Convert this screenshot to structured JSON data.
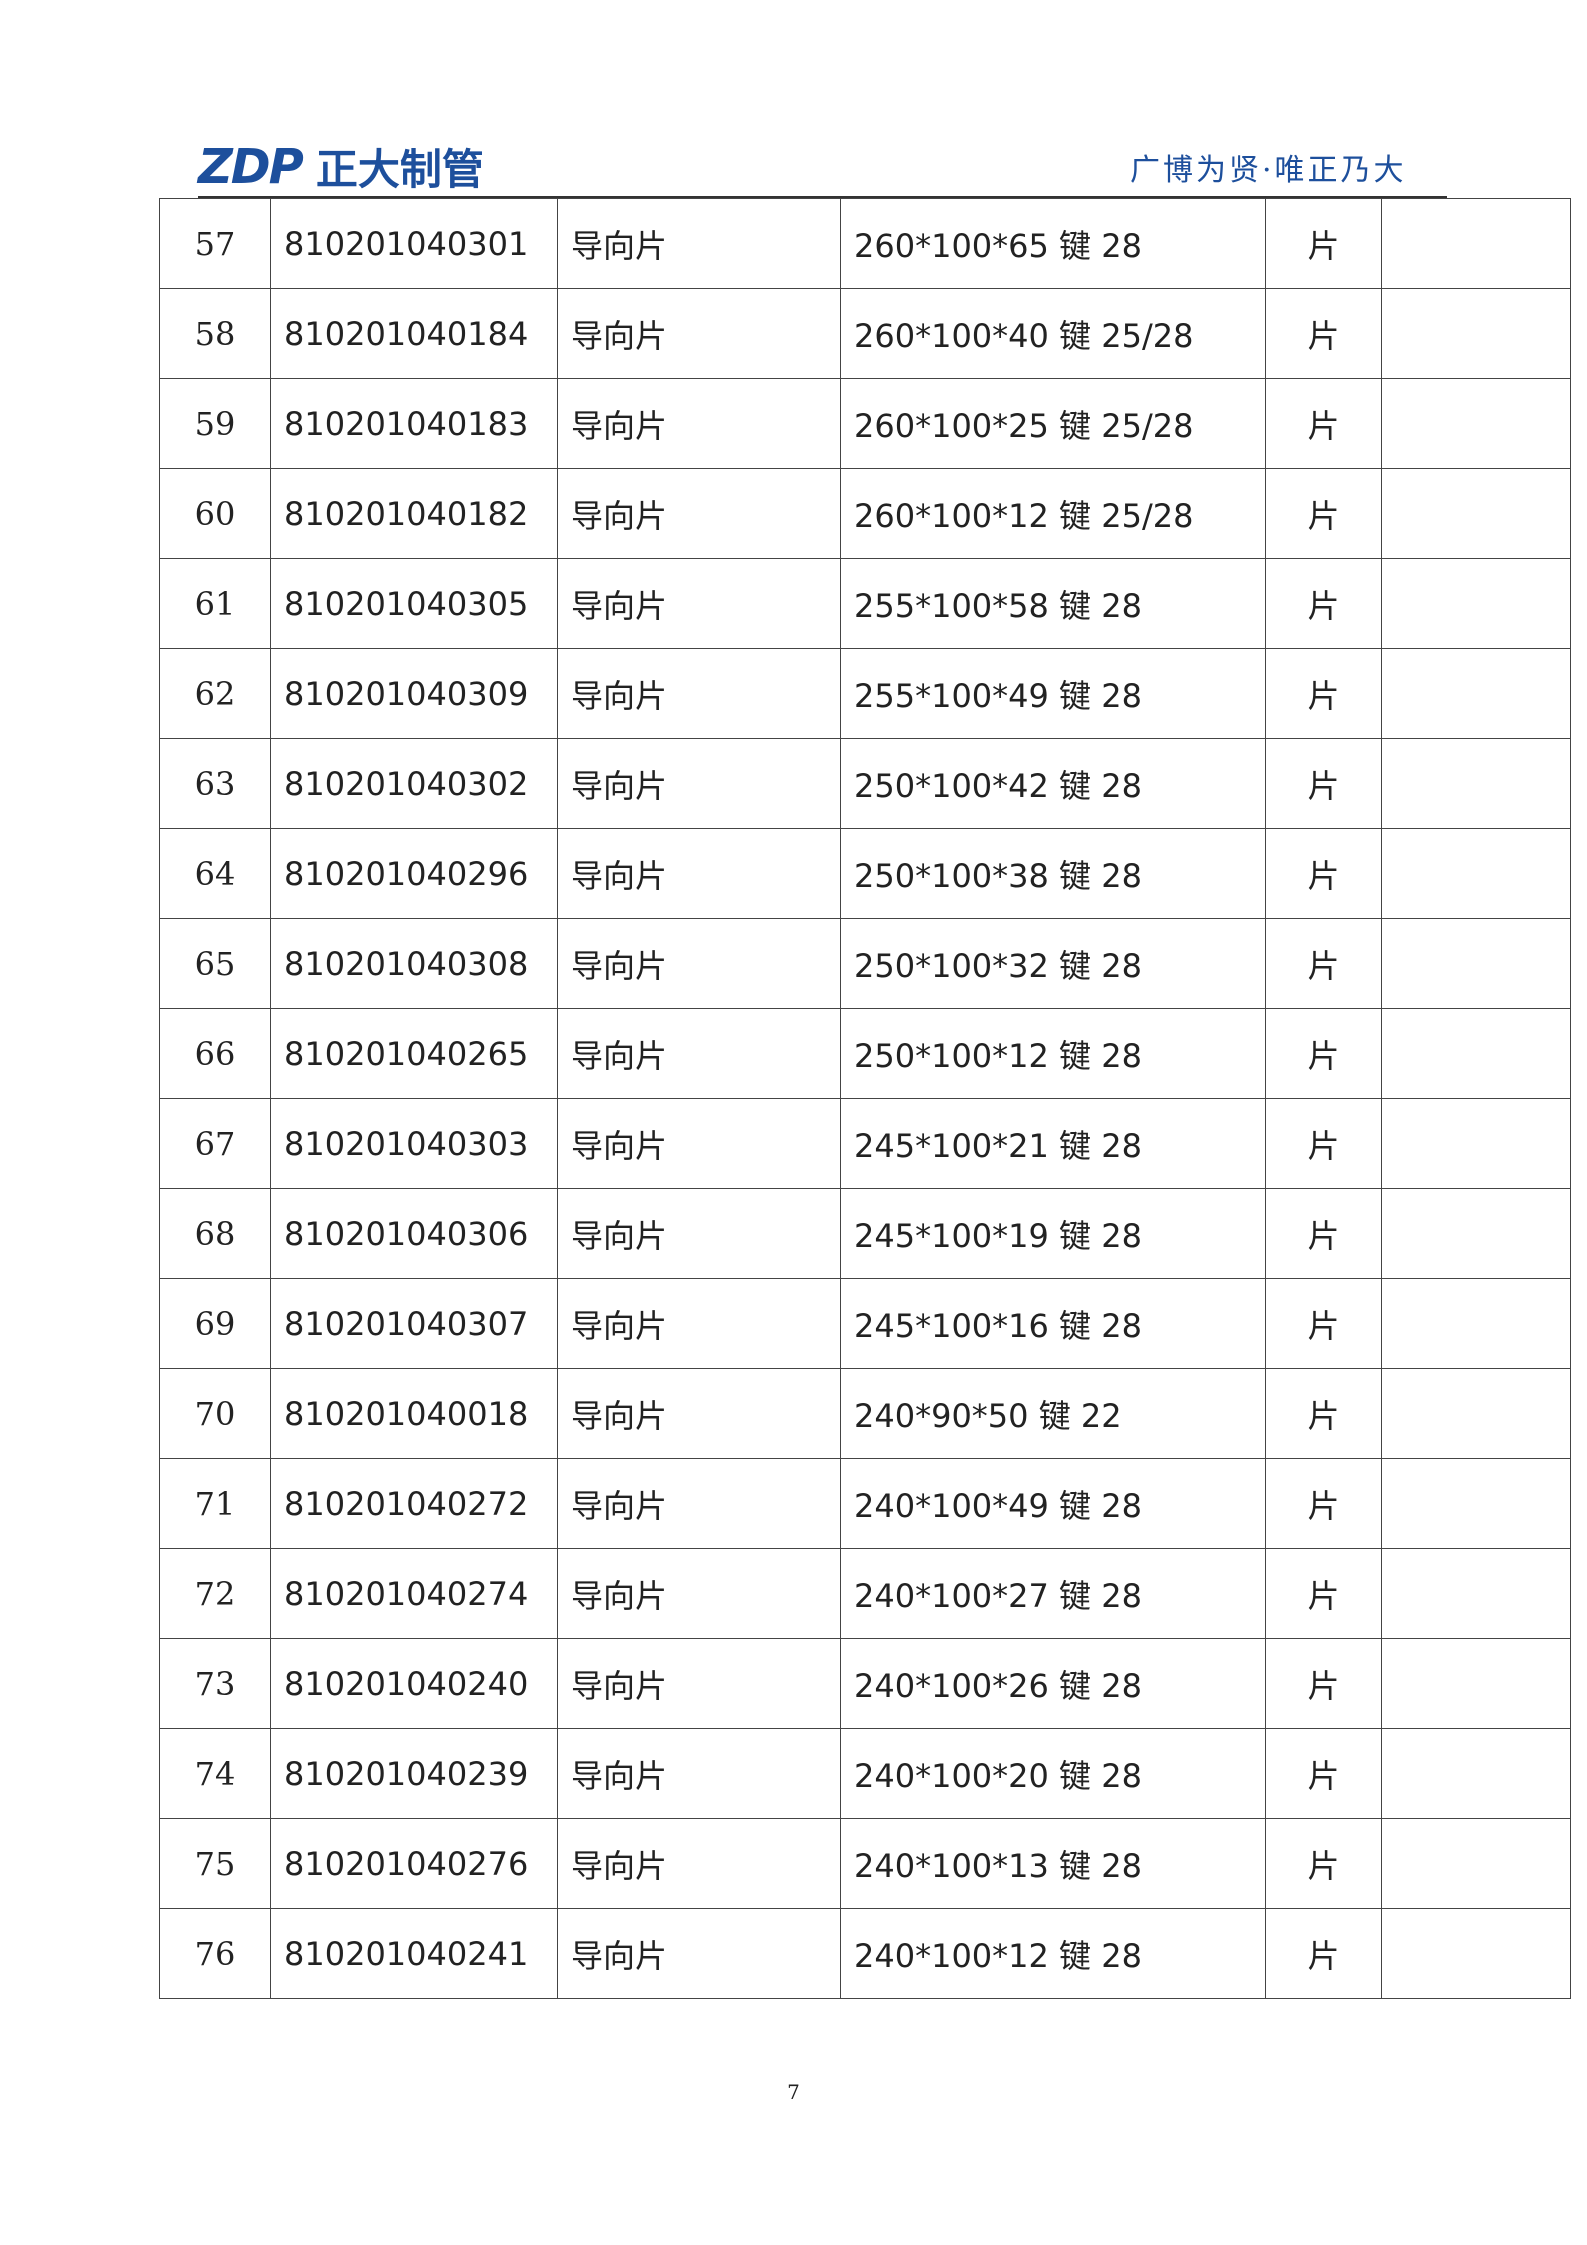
{
  "header": {
    "logo_mark": "ZDP",
    "logo_text": "正大制管",
    "slogan": "广博为贤·唯正乃大"
  },
  "table": {
    "rows": [
      [
        "57",
        "810201040301",
        "导向片",
        "260*100*65 键 28",
        "片"
      ],
      [
        "58",
        "810201040184",
        "导向片",
        "260*100*40 键 25/28",
        "片"
      ],
      [
        "59",
        "810201040183",
        "导向片",
        "260*100*25 键 25/28",
        "片"
      ],
      [
        "60",
        "810201040182",
        "导向片",
        "260*100*12 键 25/28",
        "片"
      ],
      [
        "61",
        "810201040305",
        "导向片",
        "255*100*58 键 28",
        "片"
      ],
      [
        "62",
        "810201040309",
        "导向片",
        "255*100*49 键 28",
        "片"
      ],
      [
        "63",
        "810201040302",
        "导向片",
        "250*100*42 键 28",
        "片"
      ],
      [
        "64",
        "810201040296",
        "导向片",
        "250*100*38 键 28",
        "片"
      ],
      [
        "65",
        "810201040308",
        "导向片",
        "250*100*32 键 28",
        "片"
      ],
      [
        "66",
        "810201040265",
        "导向片",
        "250*100*12 键 28",
        "片"
      ],
      [
        "67",
        "810201040303",
        "导向片",
        "245*100*21 键 28",
        "片"
      ],
      [
        "68",
        "810201040306",
        "导向片",
        "245*100*19 键 28",
        "片"
      ],
      [
        "69",
        "810201040307",
        "导向片",
        "245*100*16 键 28",
        "片"
      ],
      [
        "70",
        "810201040018",
        "导向片",
        "240*90*50 键 22",
        "片"
      ],
      [
        "71",
        "810201040272",
        "导向片",
        "240*100*49 键 28",
        "片"
      ],
      [
        "72",
        "810201040274",
        "导向片",
        "240*100*27 键 28",
        "片"
      ],
      [
        "73",
        "810201040240",
        "导向片",
        "240*100*26 键 28",
        "片"
      ],
      [
        "74",
        "810201040239",
        "导向片",
        "240*100*20 键 28",
        "片"
      ],
      [
        "75",
        "810201040276",
        "导向片",
        "240*100*13 键 28",
        "片"
      ],
      [
        "76",
        "810201040241",
        "导向片",
        "240*100*12 键 28",
        "片"
      ]
    ]
  },
  "footer": {
    "page_number": "7"
  }
}
